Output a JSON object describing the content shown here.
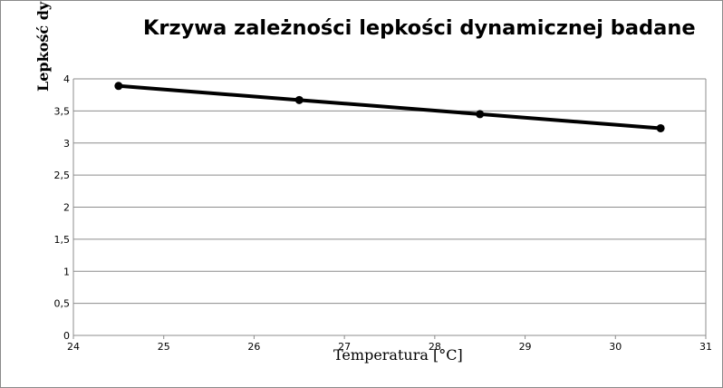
{
  "chart_data": {
    "type": "line",
    "title": "Krzywa zależności lepkości dynamicznej badane",
    "xlabel": "Temperatura [°C]",
    "ylabel": "Lepkość dy",
    "xlim": [
      24,
      31
    ],
    "ylim": [
      0,
      4
    ],
    "x_ticks": [
      "24",
      "25",
      "26",
      "27",
      "28",
      "29",
      "30",
      "31"
    ],
    "y_ticks": [
      "0",
      "0,5",
      "1",
      "1,5",
      "2",
      "2,5",
      "3",
      "3,5",
      "4"
    ],
    "grid": "horizontal",
    "legend": "none",
    "line_color": "#000000",
    "series": [
      {
        "x": [
          24.5,
          26.5,
          28.5,
          30.5
        ],
        "values": [
          3.89,
          3.67,
          3.45,
          3.23
        ]
      }
    ]
  }
}
